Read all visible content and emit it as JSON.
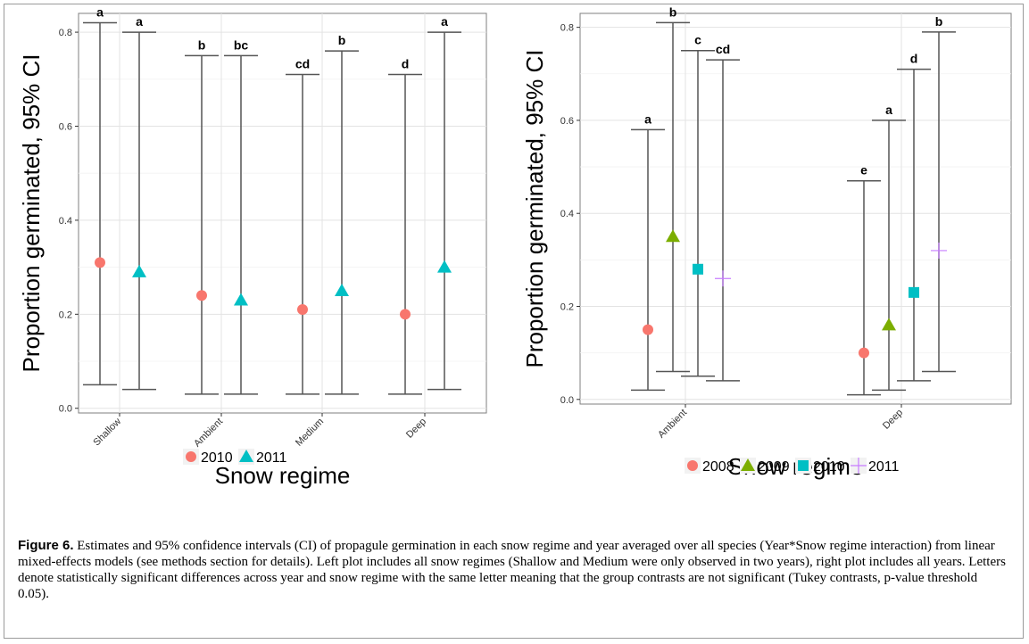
{
  "chart_data": [
    {
      "type": "scatter",
      "title": "",
      "xlabel": "Snow regime",
      "ylabel": "Proportion germinated, 95% CI",
      "ylim": [
        -0.01,
        0.84
      ],
      "yticks": [
        "0.0",
        "0.2",
        "0.4",
        "0.6",
        "0.8"
      ],
      "ytick_values": [
        0,
        0.2,
        0.4,
        0.6,
        0.8
      ],
      "categories": [
        "Shallow",
        "Ambient",
        "Medium",
        "Deep"
      ],
      "grid": true,
      "legend": "bottom",
      "series": [
        {
          "name": "2010",
          "color": "#F8766D",
          "shape": "circle",
          "estimate": [
            0.31,
            0.24,
            0.21,
            0.2
          ],
          "lower": [
            0.05,
            0.03,
            0.03,
            0.03
          ],
          "upper": [
            0.82,
            0.75,
            0.71,
            0.71
          ],
          "letters": [
            "a",
            "b",
            "cd",
            "d"
          ]
        },
        {
          "name": "2011",
          "color": "#00BFC4",
          "shape": "triangle",
          "estimate": [
            0.29,
            0.23,
            0.25,
            0.3
          ],
          "lower": [
            0.04,
            0.03,
            0.03,
            0.04
          ],
          "upper": [
            0.8,
            0.75,
            0.76,
            0.8
          ],
          "letters": [
            "a",
            "bc",
            "b",
            "a"
          ]
        }
      ]
    },
    {
      "type": "scatter",
      "title": "",
      "xlabel": "Snow regime",
      "ylabel": "Proportion germinated, 95% CI",
      "ylim": [
        -0.01,
        0.83
      ],
      "yticks": [
        "0.0",
        "0.2",
        "0.4",
        "0.6",
        "0.8"
      ],
      "ytick_values": [
        0,
        0.2,
        0.4,
        0.6,
        0.8
      ],
      "categories": [
        "Ambient",
        "Deep"
      ],
      "grid": true,
      "legend": "bottom",
      "series": [
        {
          "name": "2008",
          "color": "#F8766D",
          "shape": "circle",
          "estimate": [
            0.15,
            0.1
          ],
          "lower": [
            0.02,
            0.01
          ],
          "upper": [
            0.58,
            0.47
          ],
          "letters": [
            "a",
            "e"
          ]
        },
        {
          "name": "2009",
          "color": "#7CAE00",
          "shape": "triangle",
          "estimate": [
            0.35,
            0.16
          ],
          "lower": [
            0.06,
            0.02
          ],
          "upper": [
            0.81,
            0.6
          ],
          "letters": [
            "b",
            "a"
          ]
        },
        {
          "name": "2010",
          "color": "#00BFC4",
          "shape": "square",
          "estimate": [
            0.28,
            0.23
          ],
          "lower": [
            0.05,
            0.04
          ],
          "upper": [
            0.75,
            0.71
          ],
          "letters": [
            "c",
            "d"
          ]
        },
        {
          "name": "2011",
          "color": "#C77CFF",
          "shape": "plus",
          "estimate": [
            0.26,
            0.32
          ],
          "lower": [
            0.04,
            0.06
          ],
          "upper": [
            0.73,
            0.79
          ],
          "letters": [
            "cd",
            "b"
          ]
        }
      ]
    }
  ],
  "caption": {
    "label": "Figure 6.",
    "text": " Estimates and 95% confidence intervals (CI) of propagule germination in each snow regime and year averaged over all species (Year*Snow regime interaction) from linear mixed-effects models (see methods section for details). Left plot includes all snow regimes (Shallow and Medium were only observed in two years), right plot includes all years. Letters denote statistically significant differences across year and snow regime with the same letter meaning that the group contrasts are not significant (Tukey contrasts, p-value threshold 0.05)."
  }
}
